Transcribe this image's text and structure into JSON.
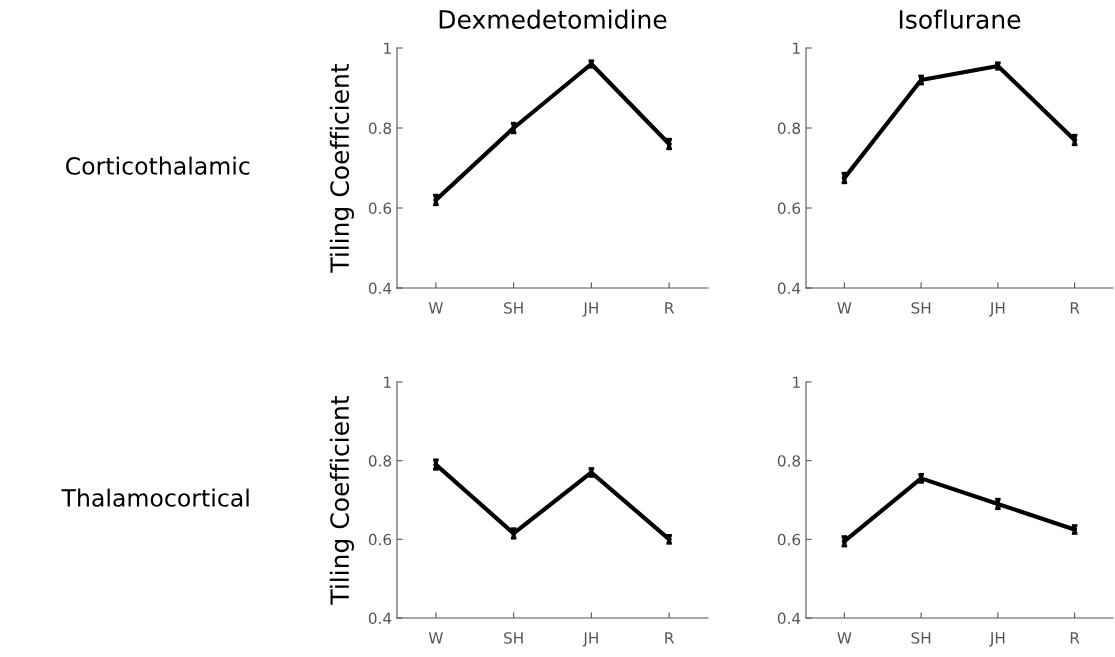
{
  "chart_data": [
    {
      "type": "line",
      "title": "Dexmedetomidine",
      "ylabel": "Tiling Coefficient",
      "annotations": [
        "Corticothalamic"
      ],
      "categories": [
        "W",
        "SH",
        "JH",
        "R"
      ],
      "series": [
        {
          "color": "#000000",
          "values": [
            0.62,
            0.8,
            0.96,
            0.76
          ],
          "errors": [
            0.012,
            0.012,
            0.008,
            0.012
          ]
        }
      ],
      "ylim": [
        0.4,
        1
      ],
      "yticks": [
        0.4,
        0.6,
        0.8,
        1
      ],
      "grid": false,
      "legend": false,
      "marker": "none",
      "line_style": "solid"
    },
    {
      "type": "line",
      "title": "Isoflurane",
      "categories": [
        "W",
        "SH",
        "JH",
        "R"
      ],
      "series": [
        {
          "color": "#000000",
          "values": [
            0.675,
            0.92,
            0.955,
            0.77
          ],
          "errors": [
            0.012,
            0.01,
            0.008,
            0.012
          ]
        }
      ],
      "ylim": [
        0.4,
        1
      ],
      "yticks": [
        0.4,
        0.6,
        0.8,
        1
      ],
      "grid": false,
      "legend": false,
      "marker": "none",
      "line_style": "solid"
    },
    {
      "type": "line",
      "ylabel": "Tiling Coefficient",
      "annotations": [
        "Thalamocortical"
      ],
      "categories": [
        "W",
        "SH",
        "JH",
        "R"
      ],
      "series": [
        {
          "color": "#000000",
          "values": [
            0.79,
            0.615,
            0.77,
            0.6
          ],
          "errors": [
            0.012,
            0.012,
            0.01,
            0.01
          ]
        }
      ],
      "ylim": [
        0.4,
        1
      ],
      "yticks": [
        0.4,
        0.6,
        0.8,
        1
      ],
      "grid": false,
      "legend": false,
      "marker": "none",
      "line_style": "solid"
    },
    {
      "type": "line",
      "categories": [
        "W",
        "SH",
        "JH",
        "R"
      ],
      "series": [
        {
          "color": "#000000",
          "values": [
            0.595,
            0.755,
            0.69,
            0.625
          ],
          "errors": [
            0.012,
            0.01,
            0.012,
            0.01
          ]
        }
      ],
      "ylim": [
        0.4,
        1
      ],
      "yticks": [
        0.4,
        0.6,
        0.8,
        1
      ],
      "grid": false,
      "legend": false,
      "marker": "none",
      "line_style": "solid"
    }
  ]
}
